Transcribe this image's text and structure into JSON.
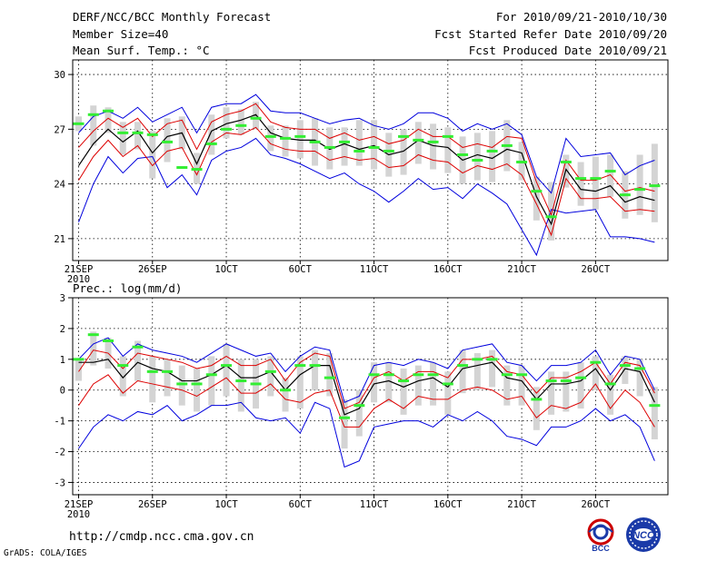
{
  "header": {
    "title": "DERF/NCC/BCC Monthly Forecast",
    "member": "Member Size=40",
    "variable": "Mean Surf. Temp.: °C",
    "period": "For 2010/09/21-2010/10/30",
    "refer_date": "Fcst Started Refer Date 2010/09/20",
    "produced": "Fcst Produced Date 2010/09/21"
  },
  "footer": {
    "url": "http://cmdp.ncc.cma.gov.cn",
    "credit": "GrADS: COLA/IGES",
    "logo1_text": "BCC",
    "logo2_text": "NCC"
  },
  "colors": {
    "box": "#d4d4d4",
    "median": "#33ee33",
    "mean": "#000000",
    "std": "#dd0000",
    "range": "#0000dd",
    "grid": "#000000"
  },
  "chart_data": [
    {
      "type": "line",
      "title": "Mean Surf. Temp.: °C",
      "x": [
        1,
        2,
        3,
        4,
        5,
        6,
        7,
        8,
        9,
        10,
        11,
        12,
        13,
        14,
        15,
        16,
        17,
        18,
        19,
        20,
        21,
        22,
        23,
        24,
        25,
        26,
        27,
        28,
        29,
        30,
        31,
        32,
        33,
        34,
        35,
        36,
        37,
        38,
        39,
        40
      ],
      "x_tick_labels": [
        "21SEP",
        "26SEP",
        "1OCT",
        "6OCT",
        "11OCT",
        "16OCT",
        "21OCT",
        "26OCT"
      ],
      "x_tick_sub": "2010",
      "x_tick_positions": [
        1,
        6,
        11,
        16,
        21,
        26,
        31,
        36
      ],
      "xlim": [
        0.6,
        40.9
      ],
      "ylim": [
        19.8,
        30.8
      ],
      "yticks": [
        21,
        24,
        27,
        30
      ],
      "series": [
        {
          "name": "max",
          "values": [
            21.9,
            24.0,
            25.5,
            24.6,
            25.4,
            25.5,
            23.8,
            24.5,
            23.4,
            25.3,
            25.8,
            26.0,
            26.5,
            25.6,
            25.4,
            25.1,
            24.7,
            24.3,
            24.6,
            24.0,
            23.6,
            23.0,
            23.6,
            24.3,
            23.7,
            23.8,
            23.2,
            24.0,
            23.5,
            22.9,
            21.5,
            20.1,
            22.6,
            22.4,
            22.5,
            22.6,
            21.1,
            21.1,
            21.0,
            20.8
          ]
        },
        {
          "name": "mean-std",
          "values": [
            24.2,
            25.5,
            26.4,
            25.5,
            26.1,
            25.0,
            25.8,
            26.0,
            24.5,
            26.3,
            26.8,
            26.7,
            27.1,
            26.2,
            25.9,
            25.8,
            25.8,
            25.3,
            25.5,
            25.3,
            25.4,
            24.9,
            25.0,
            25.6,
            25.3,
            25.2,
            24.6,
            25.0,
            24.8,
            25.1,
            24.5,
            22.9,
            21.2,
            24.3,
            23.2,
            23.2,
            23.3,
            22.5,
            22.6,
            22.5
          ]
        },
        {
          "name": "mean",
          "values": [
            25.0,
            26.2,
            27.0,
            26.3,
            26.9,
            25.7,
            26.6,
            26.8,
            25.1,
            26.9,
            27.3,
            27.5,
            27.8,
            26.8,
            26.5,
            26.4,
            26.4,
            25.9,
            26.2,
            25.9,
            26.1,
            25.6,
            25.8,
            26.4,
            26.1,
            26.0,
            25.3,
            25.6,
            25.4,
            25.9,
            25.7,
            23.3,
            21.8,
            24.8,
            23.7,
            23.6,
            23.9,
            23.0,
            23.3,
            23.1
          ]
        },
        {
          "name": "mean+std",
          "values": [
            26.0,
            26.9,
            27.6,
            27.1,
            27.6,
            26.6,
            27.3,
            27.5,
            25.9,
            27.4,
            27.8,
            28.0,
            28.4,
            27.4,
            27.1,
            27.0,
            27.0,
            26.5,
            26.8,
            26.4,
            26.6,
            26.2,
            26.4,
            27.0,
            26.6,
            26.6,
            26.0,
            26.2,
            26.0,
            26.6,
            26.5,
            24.1,
            22.3,
            25.3,
            24.2,
            24.2,
            24.5,
            23.6,
            23.8,
            23.6
          ]
        },
        {
          "name": "min",
          "values": [
            26.8,
            27.7,
            28.0,
            27.6,
            28.2,
            27.4,
            27.8,
            28.2,
            26.8,
            28.2,
            28.4,
            28.4,
            28.9,
            28.0,
            27.9,
            27.9,
            27.6,
            27.3,
            27.5,
            27.6,
            27.2,
            27.0,
            27.3,
            27.9,
            27.9,
            27.6,
            26.9,
            27.3,
            27.0,
            27.3,
            26.7,
            24.4,
            23.5,
            26.5,
            25.5,
            25.6,
            25.7,
            24.5,
            25.0,
            25.3
          ]
        },
        {
          "name": "median",
          "values": [
            27.3,
            27.8,
            28.0,
            26.8,
            26.8,
            26.7,
            26.3,
            24.9,
            24.8,
            26.2,
            27.0,
            27.2,
            27.6,
            26.6,
            26.5,
            26.6,
            26.3,
            26.0,
            26.3,
            25.8,
            26.0,
            25.8,
            26.6,
            26.4,
            26.3,
            26.6,
            25.6,
            25.3,
            25.8,
            26.1,
            25.2,
            23.6,
            22.2,
            25.2,
            24.3,
            24.3,
            24.7,
            23.4,
            23.7,
            23.9
          ]
        }
      ],
      "box_lo": [
        26.9,
        26.1,
        26.8,
        25.6,
        25.9,
        24.3,
        25.2,
        25.9,
        24.0,
        25.6,
        26.5,
        26.7,
        27.0,
        25.8,
        25.5,
        25.4,
        25.0,
        24.8,
        25.0,
        25.0,
        24.8,
        24.4,
        24.5,
        25.1,
        24.8,
        24.6,
        24.0,
        24.2,
        24.1,
        24.7,
        24.2,
        22.0,
        20.9,
        23.8,
        22.8,
        22.6,
        23.3,
        22.1,
        22.3,
        21.9
      ],
      "box_hi": [
        27.7,
        28.3,
        28.2,
        27.4,
        27.4,
        26.9,
        27.6,
        27.7,
        25.7,
        27.8,
        28.2,
        28.1,
        28.5,
        27.2,
        27.2,
        27.5,
        27.6,
        27.1,
        27.1,
        27.5,
        27.5,
        26.8,
        27.0,
        27.4,
        27.3,
        27.1,
        26.6,
        26.8,
        26.9,
        27.5,
        26.3,
        24.4,
        24.1,
        25.6,
        25.2,
        25.5,
        25.6,
        24.7,
        25.6,
        26.2
      ]
    },
    {
      "type": "line",
      "title": "Prec.: log(mm/d)",
      "x": [
        1,
        2,
        3,
        4,
        5,
        6,
        7,
        8,
        9,
        10,
        11,
        12,
        13,
        14,
        15,
        16,
        17,
        18,
        19,
        20,
        21,
        22,
        23,
        24,
        25,
        26,
        27,
        28,
        29,
        30,
        31,
        32,
        33,
        34,
        35,
        36,
        37,
        38,
        39,
        40
      ],
      "x_tick_labels": [
        "21SEP",
        "26SEP",
        "1OCT",
        "6OCT",
        "11OCT",
        "16OCT",
        "21OCT",
        "26OCT"
      ],
      "x_tick_sub": "2010",
      "x_tick_positions": [
        1,
        6,
        11,
        16,
        21,
        26,
        31,
        36
      ],
      "xlim": [
        0.6,
        40.9
      ],
      "ylim": [
        -3.4,
        3.0
      ],
      "yticks": [
        -3,
        -2,
        -1,
        0,
        1,
        2,
        3
      ],
      "series": [
        {
          "name": "max",
          "values": [
            -1.9,
            -1.2,
            -0.8,
            -1.0,
            -0.7,
            -0.8,
            -0.5,
            -1.0,
            -0.8,
            -0.5,
            -0.5,
            -0.4,
            -0.9,
            -1.0,
            -0.9,
            -1.4,
            -0.4,
            -0.6,
            -2.5,
            -2.3,
            -1.2,
            -1.1,
            -1.0,
            -1.0,
            -1.2,
            -0.8,
            -1.0,
            -0.7,
            -1.0,
            -1.5,
            -1.6,
            -1.8,
            -1.2,
            -1.2,
            -1.0,
            -0.6,
            -1.0,
            -0.8,
            -1.2,
            -2.3
          ]
        },
        {
          "name": "mean-std",
          "values": [
            -0.5,
            0.2,
            0.5,
            -0.1,
            0.3,
            0.2,
            0.1,
            0.0,
            -0.2,
            0.1,
            0.4,
            -0.1,
            -0.1,
            0.2,
            -0.3,
            -0.4,
            -0.1,
            0.0,
            -1.2,
            -1.2,
            -0.6,
            -0.3,
            -0.6,
            -0.2,
            -0.3,
            -0.3,
            0.0,
            0.1,
            0.0,
            -0.3,
            -0.2,
            -0.9,
            -0.5,
            -0.6,
            -0.4,
            0.2,
            -0.6,
            0.0,
            -0.4,
            -1.2
          ]
        },
        {
          "name": "mean",
          "values": [
            0.9,
            0.9,
            1.0,
            0.4,
            0.9,
            0.7,
            0.6,
            0.3,
            0.3,
            0.5,
            0.8,
            0.4,
            0.4,
            0.6,
            0.0,
            0.5,
            0.8,
            0.8,
            -0.8,
            -0.6,
            0.2,
            0.3,
            0.1,
            0.3,
            0.4,
            0.1,
            0.7,
            0.8,
            0.9,
            0.4,
            0.3,
            -0.3,
            0.2,
            0.2,
            0.3,
            0.7,
            0.0,
            0.7,
            0.6,
            -0.4
          ]
        },
        {
          "name": "mean+std",
          "values": [
            0.6,
            1.3,
            1.2,
            0.7,
            1.2,
            1.1,
            1.0,
            0.9,
            0.7,
            0.8,
            1.1,
            0.8,
            0.8,
            1.0,
            0.3,
            0.9,
            1.2,
            1.1,
            -0.6,
            -0.4,
            0.4,
            0.6,
            0.3,
            0.6,
            0.6,
            0.4,
            1.0,
            1.0,
            1.1,
            0.6,
            0.5,
            -0.1,
            0.4,
            0.4,
            0.6,
            0.9,
            0.2,
            0.9,
            0.8,
            -0.1
          ]
        },
        {
          "name": "min",
          "values": [
            1.0,
            1.5,
            1.7,
            1.1,
            1.5,
            1.3,
            1.2,
            1.1,
            0.9,
            1.2,
            1.5,
            1.3,
            1.1,
            1.2,
            0.6,
            1.1,
            1.4,
            1.3,
            -0.4,
            -0.2,
            0.8,
            0.9,
            0.8,
            1.0,
            0.9,
            0.7,
            1.3,
            1.4,
            1.5,
            0.9,
            0.8,
            0.3,
            0.8,
            0.8,
            0.9,
            1.3,
            0.5,
            1.1,
            1.0,
            0.0
          ]
        },
        {
          "name": "median",
          "values": [
            1.0,
            1.8,
            1.6,
            0.8,
            1.4,
            0.6,
            0.6,
            0.2,
            0.2,
            0.5,
            0.8,
            0.3,
            0.2,
            0.6,
            0.0,
            0.8,
            0.8,
            0.4,
            -0.9,
            -0.5,
            0.5,
            0.5,
            0.3,
            0.5,
            0.5,
            0.2,
            0.8,
            1.0,
            1.0,
            0.5,
            0.5,
            -0.3,
            0.3,
            0.3,
            0.4,
            0.9,
            0.2,
            0.8,
            0.7,
            -0.5
          ]
        }
      ],
      "box_lo": [
        0.3,
        0.8,
        0.7,
        -0.2,
        0.3,
        -0.4,
        -0.2,
        -0.5,
        -0.7,
        -0.5,
        -0.2,
        -0.7,
        -0.6,
        -0.2,
        -0.7,
        -0.6,
        0.0,
        -0.2,
        -1.9,
        -1.5,
        -0.4,
        -0.4,
        -0.8,
        -0.5,
        -0.5,
        -0.8,
        -0.1,
        0.0,
        0.1,
        -0.5,
        -0.5,
        -1.3,
        -0.8,
        -0.7,
        -0.6,
        0.0,
        -0.8,
        0.2,
        -0.2,
        -1.6
      ],
      "box_hi": [
        1.0,
        1.9,
        1.7,
        1.1,
        1.6,
        1.1,
        1.0,
        0.8,
        0.7,
        1.1,
        1.5,
        1.0,
        1.0,
        1.1,
        0.4,
        1.1,
        1.3,
        1.2,
        -0.3,
        0.0,
        0.9,
        0.9,
        0.7,
        0.8,
        0.9,
        0.6,
        1.3,
        1.2,
        1.3,
        0.8,
        0.8,
        0.1,
        0.6,
        0.6,
        0.9,
        1.1,
        0.5,
        1.1,
        1.0,
        0.1
      ]
    }
  ]
}
